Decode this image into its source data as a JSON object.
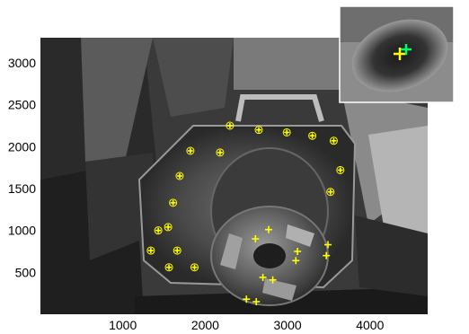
{
  "figure": {
    "image_description_key": "grayscale-machine-chuck-photo",
    "x_ticks": [
      {
        "value": 1000,
        "label": "1000"
      },
      {
        "value": 2000,
        "label": "2000"
      },
      {
        "value": 3000,
        "label": "3000"
      },
      {
        "value": 4000,
        "label": "4000"
      }
    ],
    "y_ticks": [
      {
        "value": 500,
        "label": "500"
      },
      {
        "value": 1000,
        "label": "1000"
      },
      {
        "value": 1500,
        "label": "1500"
      },
      {
        "value": 2000,
        "label": "2000"
      },
      {
        "value": 2500,
        "label": "2500"
      },
      {
        "value": 3000,
        "label": "3000"
      }
    ],
    "markers": {
      "plus_color": "#ffff00",
      "circle_color": "#ffff00",
      "inset_green_color": "#00ff66"
    }
  },
  "chart_data": {
    "type": "scatter",
    "title": "",
    "xlabel": "",
    "ylabel": "",
    "xlim": [
      0,
      4700
    ],
    "ylim": [
      0,
      3300
    ],
    "x_tick_values": [
      1000,
      2000,
      3000,
      4000
    ],
    "y_tick_values": [
      500,
      1000,
      1500,
      2000,
      2500,
      3000
    ],
    "grid": false,
    "series": [
      {
        "marker": "circle+plus",
        "color": "#ffff00",
        "points": [
          {
            "x": 2300,
            "y": 2250
          },
          {
            "x": 2650,
            "y": 2200
          },
          {
            "x": 2990,
            "y": 2170
          },
          {
            "x": 3300,
            "y": 2130
          },
          {
            "x": 3560,
            "y": 2070
          },
          {
            "x": 3640,
            "y": 1720
          },
          {
            "x": 3520,
            "y": 1460
          },
          {
            "x": 2180,
            "y": 1930
          },
          {
            "x": 1820,
            "y": 1950
          },
          {
            "x": 1690,
            "y": 1650
          },
          {
            "x": 1610,
            "y": 1330
          },
          {
            "x": 1550,
            "y": 1040
          },
          {
            "x": 1430,
            "y": 1000
          },
          {
            "x": 1340,
            "y": 760
          },
          {
            "x": 1660,
            "y": 760
          },
          {
            "x": 1560,
            "y": 560
          },
          {
            "x": 1870,
            "y": 560
          }
        ]
      },
      {
        "marker": "plus",
        "color": "#ffff00",
        "points": [
          {
            "x": 2610,
            "y": 900
          },
          {
            "x": 2770,
            "y": 1010
          },
          {
            "x": 3120,
            "y": 750
          },
          {
            "x": 3100,
            "y": 640
          },
          {
            "x": 3490,
            "y": 830
          },
          {
            "x": 3470,
            "y": 700
          },
          {
            "x": 2700,
            "y": 440
          },
          {
            "x": 2820,
            "y": 410
          },
          {
            "x": 2500,
            "y": 180
          },
          {
            "x": 2620,
            "y": 150
          }
        ]
      }
    ]
  }
}
